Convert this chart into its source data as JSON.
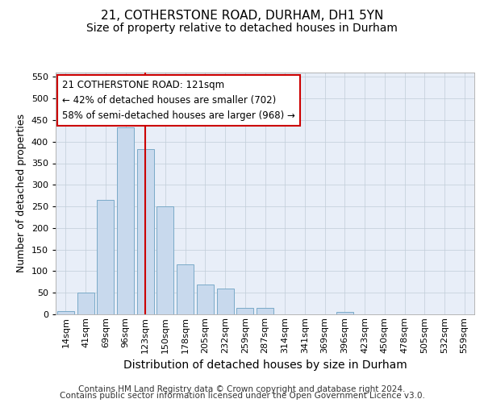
{
  "title1": "21, COTHERSTONE ROAD, DURHAM, DH1 5YN",
  "title2": "Size of property relative to detached houses in Durham",
  "xlabel": "Distribution of detached houses by size in Durham",
  "ylabel": "Number of detached properties",
  "categories": [
    "14sqm",
    "41sqm",
    "69sqm",
    "96sqm",
    "123sqm",
    "150sqm",
    "178sqm",
    "205sqm",
    "232sqm",
    "259sqm",
    "287sqm",
    "314sqm",
    "341sqm",
    "369sqm",
    "396sqm",
    "423sqm",
    "450sqm",
    "478sqm",
    "505sqm",
    "532sqm",
    "559sqm"
  ],
  "values": [
    7,
    50,
    265,
    433,
    383,
    250,
    115,
    70,
    60,
    15,
    15,
    0,
    0,
    0,
    5,
    0,
    0,
    0,
    0,
    0,
    0
  ],
  "bar_color": "#c8d9ed",
  "bar_edge_color": "#7aaac8",
  "vline_index": 4.5,
  "vline_color": "#cc0000",
  "annotation_line1": "21 COTHERSTONE ROAD: 121sqm",
  "annotation_line2": "← 42% of detached houses are smaller (702)",
  "annotation_line3": "58% of semi-detached houses are larger (968) →",
  "annotation_box_facecolor": "#ffffff",
  "annotation_box_edgecolor": "#cc0000",
  "ylim": [
    0,
    560
  ],
  "yticks": [
    0,
    50,
    100,
    150,
    200,
    250,
    300,
    350,
    400,
    450,
    500,
    550
  ],
  "footnote_line1": "Contains HM Land Registry data © Crown copyright and database right 2024.",
  "footnote_line2": "Contains public sector information licensed under the Open Government Licence v3.0.",
  "title1_fontsize": 11,
  "title2_fontsize": 10,
  "xlabel_fontsize": 10,
  "ylabel_fontsize": 9,
  "tick_fontsize": 8,
  "footnote_fontsize": 7.5,
  "plot_bg_color": "#e8eef8",
  "grid_color": "#c0ccd8",
  "fig_bg_color": "#ffffff"
}
